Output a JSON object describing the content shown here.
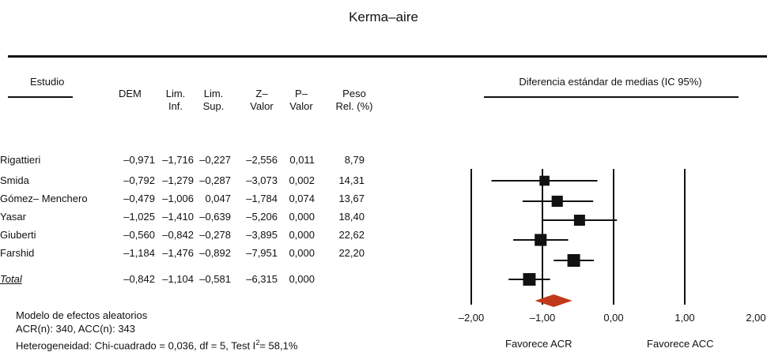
{
  "title": "Kerma–aire",
  "headers": {
    "study": "Estudio",
    "dem": "DEM",
    "lim_inf": [
      "Lim.",
      "Inf."
    ],
    "lim_sup": [
      "Lim.",
      "Sup."
    ],
    "z": [
      "Z–",
      "Valor"
    ],
    "p": [
      "P–",
      "Valor"
    ],
    "peso": [
      "Peso",
      "Rel. (%)"
    ],
    "plot": "Diferencia estándar de medias (IC 95%)"
  },
  "rows": [
    {
      "name": "Rigattieri",
      "dem": "–0,971",
      "inf": "–1,716",
      "sup": "–0,227",
      "z": "–2,556",
      "p": "0,011",
      "peso": "8,79"
    },
    {
      "name": "Smida",
      "dem": "–0,792",
      "inf": "–1,279",
      "sup": "–0,287",
      "z": "–3,073",
      "p": "0,002",
      "peso": "14,31"
    },
    {
      "name": "Gómez– Menchero",
      "dem": "–0,479",
      "inf": "–1,006",
      "sup": "0,047",
      "z": "–1,784",
      "p": "0,074",
      "peso": "13,67"
    },
    {
      "name": "Yasar",
      "dem": "–1,025",
      "inf": "–1,410",
      "sup": "–0,639",
      "z": "–5,206",
      "p": "0,000",
      "peso": "18,40"
    },
    {
      "name": "Giuberti",
      "dem": "–0,560",
      "inf": "–0,842",
      "sup": "–0,278",
      "z": "–3,895",
      "p": "0,000",
      "peso": "22,62"
    },
    {
      "name": "Farshid",
      "dem": "–1,184",
      "inf": "–1,476",
      "sup": "–0,892",
      "z": "–7,951",
      "p": "0,000",
      "peso": "22,20"
    }
  ],
  "total": {
    "name": "Total",
    "dem": "–0,842",
    "inf": "–1,104",
    "sup": "–0,581",
    "z": "–6,315",
    "p": "0,000"
  },
  "footer": {
    "model": "Modelo de efectos aleatorios",
    "n": "ACR(n): 340, ACC(n): 343",
    "het_pre": "Heterogeneidad: Chi-cuadrado = 0,036, df = 5, Test I",
    "het_sup": "2",
    "het_post": "= 58,1%"
  },
  "axis": {
    "ticks": [
      "–2,00",
      "–1,00",
      "0,00",
      "1,00",
      "2,00"
    ],
    "favors_left": "Favorece ACR",
    "favors_right": "Favorece ACC"
  },
  "colors": {
    "diamond": "#c0391b",
    "ink": "#111111"
  },
  "chart_data": {
    "type": "forest",
    "title": "Kerma–aire",
    "xlabel": "Diferencia estándar de medias (IC 95%)",
    "xlim": [
      -2,
      2
    ],
    "tick_values": [
      -2,
      -1,
      0,
      1,
      2
    ],
    "studies": [
      {
        "name": "Rigattieri",
        "dem": -0.971,
        "low": -1.716,
        "high": -0.227,
        "weight": 8.79
      },
      {
        "name": "Smida",
        "dem": -0.792,
        "low": -1.279,
        "high": -0.287,
        "weight": 14.31
      },
      {
        "name": "Gómez– Menchero",
        "dem": -0.479,
        "low": -1.006,
        "high": 0.047,
        "weight": 13.67
      },
      {
        "name": "Yasar",
        "dem": -1.025,
        "low": -1.41,
        "high": -0.639,
        "weight": 18.4
      },
      {
        "name": "Giuberti",
        "dem": -0.56,
        "low": -0.842,
        "high": -0.278,
        "weight": 22.62
      },
      {
        "name": "Farshid",
        "dem": -1.184,
        "low": -1.476,
        "high": -0.892,
        "weight": 22.2
      }
    ],
    "total": {
      "name": "Total",
      "dem": -0.842,
      "low": -1.104,
      "high": -0.581
    },
    "pooled": {
      "dem": -0.842,
      "low": -1.104,
      "high": -0.581
    }
  }
}
